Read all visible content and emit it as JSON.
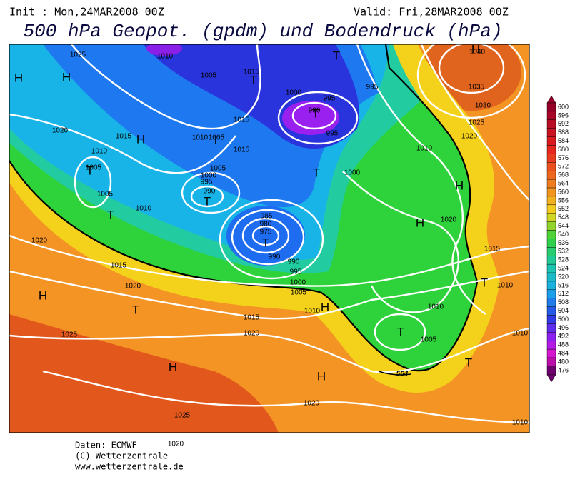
{
  "header": {
    "init": "Init : Mon,24MAR2008 00Z",
    "valid": "Valid: Fri,28MAR2008 00Z",
    "title": "500 hPa Geopot. (gpdm) und Bodendruck (hPa)"
  },
  "map": {
    "isobar_labels": [
      1025,
      1010,
      1005,
      1015,
      1000,
      995,
      995,
      990,
      995,
      1020,
      1015,
      1010,
      1005,
      1015,
      1015,
      1010,
      1005,
      1005,
      1000,
      995,
      990,
      1010,
      1005,
      1000,
      1010,
      1020,
      1025,
      1030,
      1035,
      1040,
      1020,
      1015,
      1010,
      1010,
      1010,
      1005,
      1020,
      1015,
      1020,
      985,
      980,
      975,
      990,
      990,
      995,
      1000,
      1005,
      1010,
      1015,
      1020,
      1025,
      1025,
      1020,
      1020,
      1010
    ],
    "pressure_centers": [
      "H",
      "H",
      "H",
      "T",
      "H",
      "T",
      "T",
      "T",
      "T",
      "T",
      "T",
      "T",
      "T",
      "H",
      "H",
      "H",
      "T",
      "H",
      "H",
      "H",
      "T",
      "T",
      "T"
    ],
    "front_label": 564
  },
  "colorbar": {
    "ticks": [
      600,
      596,
      592,
      588,
      584,
      580,
      576,
      572,
      568,
      564,
      560,
      556,
      552,
      548,
      544,
      540,
      536,
      532,
      528,
      524,
      520,
      516,
      512,
      508,
      504,
      500,
      496,
      492,
      488,
      484,
      480,
      476
    ]
  },
  "footer": {
    "source": "Daten: ECMWF",
    "copyright": "(C) Wetterzentrale",
    "url": "www.wetterzentrale.de"
  }
}
